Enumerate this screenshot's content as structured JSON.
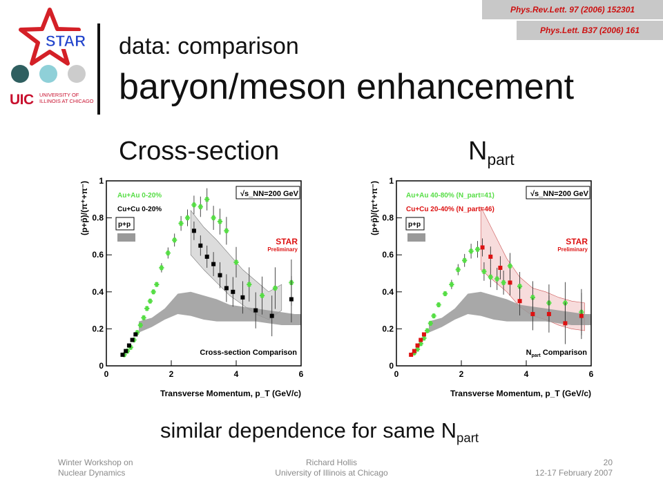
{
  "references": {
    "prl": "Phys.Rev.Lett. 97 (2006) 152301",
    "plb": "Phys.Lett. B37 (2006) 161"
  },
  "logos": {
    "star": "STAR",
    "uic": "UIC",
    "uic_name": "UNIVERSITY OF ILLINOIS AT CHICAGO"
  },
  "title": {
    "line1": "data: comparison",
    "line2": "baryon/meson enhancement"
  },
  "subheads": {
    "left": "Cross-section",
    "right_main": "N",
    "right_sub": "part"
  },
  "caption": {
    "main": "similar dependence for same N",
    "sub": "part"
  },
  "footer": {
    "left_line1": "Winter Workshop on",
    "left_line2": "Nuclear Dynamics",
    "center_line1": "Richard Hollis",
    "center_line2": "University of Illinois at Chicago",
    "right_line1": "20",
    "right_line2": "12-17 February 2007"
  },
  "colors": {
    "star_red": "#d42027",
    "uic_red": "#c8102e",
    "auau": "#55dd44",
    "cucu_black": "#000000",
    "cucu_red": "#dd1111",
    "pp_band": "#999999",
    "circles": [
      "#2f5f60",
      "#8fd0d8",
      "#cccccc"
    ]
  },
  "chart_data": [
    {
      "type": "scatter",
      "title": "Cross-section Comparison",
      "xlabel": "Transverse Momentum, p_T (GeV/c)",
      "ylabel": "(p+p̄)/(π⁺+π⁻)",
      "xlim": [
        0,
        6
      ],
      "ylim": [
        0,
        1
      ],
      "xticks": [
        "0",
        "2",
        "4",
        "6"
      ],
      "yticks": [
        "0",
        "0.2",
        "0.4",
        "0.6",
        "0.8",
        "1"
      ],
      "energy_label": "√s_NN=200 GeV",
      "star_label": "STAR",
      "star_sub": "Preliminary",
      "pp_label": "p+p",
      "legend": [
        "Au+Au 0-20%",
        "Cu+Cu 0-20%"
      ],
      "series": [
        {
          "name": "Au+Au 0-20%",
          "x": [
            0.55,
            0.65,
            0.75,
            0.85,
            0.95,
            1.05,
            1.15,
            1.25,
            1.35,
            1.45,
            1.55,
            1.7,
            1.9,
            2.1,
            2.3,
            2.5,
            2.7,
            2.9,
            3.1,
            3.3,
            3.5,
            3.7,
            4.0,
            4.4,
            4.8,
            5.2,
            5.7
          ],
          "y": [
            0.06,
            0.08,
            0.1,
            0.14,
            0.18,
            0.22,
            0.26,
            0.31,
            0.35,
            0.4,
            0.44,
            0.53,
            0.61,
            0.68,
            0.77,
            0.8,
            0.87,
            0.86,
            0.9,
            0.8,
            0.78,
            0.73,
            0.56,
            0.44,
            0.38,
            0.42,
            0.45
          ]
        },
        {
          "name": "Cu+Cu 0-20%",
          "x": [
            0.5,
            0.6,
            0.7,
            0.8,
            0.9,
            2.7,
            2.9,
            3.1,
            3.3,
            3.5,
            3.7,
            3.9,
            4.2,
            4.6,
            5.1,
            5.7
          ],
          "y": [
            0.06,
            0.08,
            0.11,
            0.14,
            0.17,
            0.73,
            0.65,
            0.59,
            0.55,
            0.49,
            0.42,
            0.4,
            0.37,
            0.3,
            0.27,
            0.36
          ]
        }
      ],
      "pp_band": {
        "x": [
          1.0,
          1.4,
          1.8,
          2.2,
          2.6,
          3.0,
          3.4,
          3.8,
          4.2,
          4.6,
          5.0,
          5.4,
          5.8,
          6.0
        ],
        "low": [
          0.18,
          0.21,
          0.25,
          0.28,
          0.27,
          0.25,
          0.24,
          0.24,
          0.24,
          0.24,
          0.23,
          0.22,
          0.22,
          0.22
        ],
        "high": [
          0.24,
          0.26,
          0.31,
          0.39,
          0.4,
          0.38,
          0.36,
          0.33,
          0.32,
          0.31,
          0.3,
          0.29,
          0.28,
          0.28
        ]
      },
      "sys_band": {
        "x": [
          2.6,
          3.0,
          3.4,
          3.8,
          4.2,
          4.6,
          5.0,
          5.4
        ],
        "low": [
          0.6,
          0.52,
          0.45,
          0.38,
          0.33,
          0.28,
          0.25,
          0.3
        ],
        "high": [
          0.84,
          0.75,
          0.68,
          0.6,
          0.52,
          0.46,
          0.4,
          0.44
        ]
      }
    },
    {
      "type": "scatter",
      "title_main": "N",
      "title_sub": "part",
      "title_rest": " Comparison",
      "xlabel": "Transverse Momentum, p_T (GeV/c)",
      "ylabel": "(p+p̄)/(π⁺+π⁻)",
      "xlim": [
        0,
        6
      ],
      "ylim": [
        0,
        1
      ],
      "xticks": [
        "0",
        "2",
        "4",
        "6"
      ],
      "yticks": [
        "0",
        "0.2",
        "0.4",
        "0.6",
        "0.8",
        "1"
      ],
      "energy_label": "√s_NN=200 GeV",
      "star_label": "STAR",
      "star_sub": "Preliminary",
      "pp_label": "p+p",
      "legend": [
        "Au+Au 40-80% (N_part=41)",
        "Cu+Cu 20-40% (N_part=46)"
      ],
      "series": [
        {
          "name": "Au+Au 40-80% (N_part=41)",
          "x": [
            0.55,
            0.65,
            0.75,
            0.85,
            0.95,
            1.05,
            1.15,
            1.3,
            1.5,
            1.7,
            1.9,
            2.1,
            2.3,
            2.5,
            2.7,
            2.9,
            3.1,
            3.3,
            3.5,
            3.8,
            4.2,
            4.7,
            5.2,
            5.7
          ],
          "y": [
            0.07,
            0.09,
            0.12,
            0.15,
            0.19,
            0.23,
            0.27,
            0.33,
            0.39,
            0.44,
            0.52,
            0.57,
            0.62,
            0.63,
            0.51,
            0.48,
            0.47,
            0.45,
            0.54,
            0.43,
            0.37,
            0.34,
            0.34,
            0.29
          ]
        },
        {
          "name": "Cu+Cu 20-40% (N_part=46)",
          "x": [
            0.45,
            0.55,
            0.65,
            0.75,
            0.85,
            2.65,
            2.9,
            3.2,
            3.5,
            3.8,
            4.2,
            4.7,
            5.2,
            5.7
          ],
          "y": [
            0.06,
            0.08,
            0.11,
            0.14,
            0.17,
            0.64,
            0.59,
            0.53,
            0.45,
            0.35,
            0.28,
            0.28,
            0.23,
            0.27
          ]
        }
      ],
      "pp_band": {
        "x": [
          1.0,
          1.4,
          1.8,
          2.2,
          2.6,
          3.0,
          3.4,
          3.8,
          4.2,
          4.6,
          5.0,
          5.4,
          5.8,
          6.0
        ],
        "low": [
          0.18,
          0.21,
          0.25,
          0.28,
          0.27,
          0.25,
          0.24,
          0.24,
          0.24,
          0.24,
          0.23,
          0.22,
          0.22,
          0.22
        ],
        "high": [
          0.24,
          0.26,
          0.31,
          0.39,
          0.4,
          0.38,
          0.36,
          0.33,
          0.32,
          0.31,
          0.3,
          0.29,
          0.28,
          0.28
        ]
      },
      "sys_band": {
        "x": [
          2.6,
          3.0,
          3.4,
          3.8,
          4.2,
          4.6,
          5.0,
          5.4,
          5.8
        ],
        "low": [
          0.52,
          0.46,
          0.4,
          0.32,
          0.27,
          0.25,
          0.22,
          0.2,
          0.19
        ],
        "high": [
          0.86,
          0.72,
          0.58,
          0.48,
          0.42,
          0.4,
          0.37,
          0.35,
          0.34
        ]
      }
    }
  ]
}
